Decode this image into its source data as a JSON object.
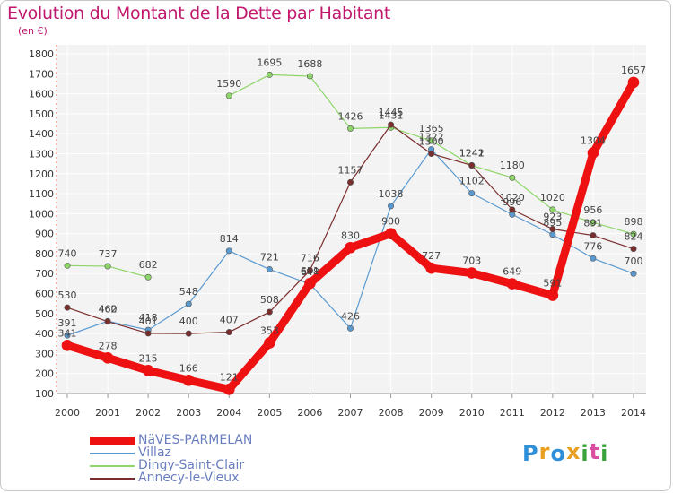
{
  "title": "Evolution du Montant de la Dette par Habitant",
  "subtitle": "(en €)",
  "logo": {
    "text": "Proxiti",
    "colors": [
      "#2f8fd8",
      "#e9a020",
      "#2f8fd8",
      "#e9a020",
      "#3aa23a",
      "#d94ea0",
      "#3aa23a"
    ]
  },
  "chart_data": {
    "type": "line",
    "title": "Evolution du Montant de la Dette par Habitant",
    "ylabel": "(en €)",
    "ylim": [
      100,
      1800
    ],
    "yticks": [
      100,
      200,
      300,
      400,
      500,
      600,
      700,
      800,
      900,
      1000,
      1100,
      1200,
      1300,
      1400,
      1500,
      1600,
      1700,
      1800
    ],
    "categories": [
      "2000",
      "2001",
      "2002",
      "2003",
      "2004",
      "2005",
      "2006",
      "2007",
      "2008",
      "2009",
      "2010",
      "2011",
      "2012",
      "2013",
      "2014"
    ],
    "series": [
      {
        "name": "NäVES-PARMELAN",
        "color": "#ee1111",
        "width": 9,
        "values": [
          341,
          278,
          215,
          166,
          121,
          353,
          651,
          830,
          900,
          727,
          703,
          649,
          591,
          1304,
          1657
        ]
      },
      {
        "name": "Villaz",
        "color": "#5b9ad0",
        "width": 1.2,
        "values": [
          391,
          462,
          418,
          548,
          814,
          721,
          648,
          426,
          1038,
          1322,
          1102,
          996,
          895,
          776,
          700
        ]
      },
      {
        "name": "Dingy-Saint-Clair",
        "color": "#8fd66a",
        "width": 1.2,
        "values": [
          740,
          737,
          682,
          null,
          1590,
          1695,
          1688,
          1426,
          1431,
          1365,
          1241,
          1180,
          1020,
          956,
          898
        ],
        "gap_after": 2
      },
      {
        "name": "Annecy-le-Vieux",
        "color": "#7a2d2d",
        "width": 1.2,
        "values": [
          530,
          460,
          401,
          400,
          407,
          508,
          716,
          1157,
          1445,
          1300,
          1242,
          1020,
          923,
          891,
          824
        ]
      }
    ]
  }
}
